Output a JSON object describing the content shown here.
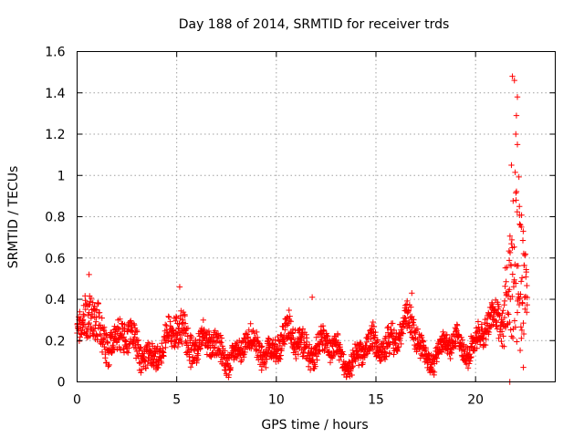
{
  "chart_data": {
    "type": "scatter",
    "title": "Day 188 of 2014, SRMTID for receiver trds",
    "xlabel": "GPS time / hours",
    "ylabel": "SRMTID / TECUs",
    "xlim": [
      0,
      24
    ],
    "ylim": [
      0,
      1.6
    ],
    "xticks": [
      "0",
      "5",
      "10",
      "15",
      "20"
    ],
    "yticks": [
      "0",
      "0.2",
      "0.4",
      "0.6",
      "0.8",
      "1",
      "1.2",
      "1.4",
      "1.6"
    ],
    "grid": true,
    "marker": "plus",
    "series_color": "#ff0000",
    "series": [
      {
        "name": "trds",
        "envelope": [
          {
            "x": 0.0,
            "base": 0.22,
            "spread": 0.1
          },
          {
            "x": 0.7,
            "base": 0.3,
            "spread": 0.14
          },
          {
            "x": 1.5,
            "base": 0.22,
            "spread": 0.1
          },
          {
            "x": 3.0,
            "base": 0.17,
            "spread": 0.09
          },
          {
            "x": 4.3,
            "base": 0.14,
            "spread": 0.07
          },
          {
            "x": 5.2,
            "base": 0.28,
            "spread": 0.12
          },
          {
            "x": 6.0,
            "base": 0.18,
            "spread": 0.08
          },
          {
            "x": 7.5,
            "base": 0.15,
            "spread": 0.07
          },
          {
            "x": 9.0,
            "base": 0.16,
            "spread": 0.07
          },
          {
            "x": 10.5,
            "base": 0.2,
            "spread": 0.09
          },
          {
            "x": 12.0,
            "base": 0.18,
            "spread": 0.08
          },
          {
            "x": 13.5,
            "base": 0.11,
            "spread": 0.06
          },
          {
            "x": 15.0,
            "base": 0.16,
            "spread": 0.08
          },
          {
            "x": 16.5,
            "base": 0.28,
            "spread": 0.1
          },
          {
            "x": 17.5,
            "base": 0.14,
            "spread": 0.06
          },
          {
            "x": 19.5,
            "base": 0.18,
            "spread": 0.07
          },
          {
            "x": 20.5,
            "base": 0.24,
            "spread": 0.08
          },
          {
            "x": 21.3,
            "base": 0.3,
            "spread": 0.1
          },
          {
            "x": 21.9,
            "base": 0.55,
            "spread": 0.5
          },
          {
            "x": 22.2,
            "base": 0.6,
            "spread": 0.55
          },
          {
            "x": 22.6,
            "base": 0.3,
            "spread": 0.12
          }
        ],
        "outliers": [
          {
            "x": 21.85,
            "y": 1.48
          },
          {
            "x": 21.95,
            "y": 1.46
          },
          {
            "x": 22.1,
            "y": 1.38
          },
          {
            "x": 22.05,
            "y": 1.29
          },
          {
            "x": 22.02,
            "y": 1.2
          },
          {
            "x": 22.1,
            "y": 1.15
          },
          {
            "x": 21.8,
            "y": 1.05
          },
          {
            "x": 22.2,
            "y": 0.85
          },
          {
            "x": 22.3,
            "y": 0.75
          },
          {
            "x": 21.72,
            "y": 0.0
          },
          {
            "x": 22.4,
            "y": 0.07
          },
          {
            "x": 0.6,
            "y": 0.52
          },
          {
            "x": 5.15,
            "y": 0.46
          },
          {
            "x": 11.8,
            "y": 0.41
          },
          {
            "x": 16.8,
            "y": 0.43
          }
        ]
      }
    ]
  }
}
